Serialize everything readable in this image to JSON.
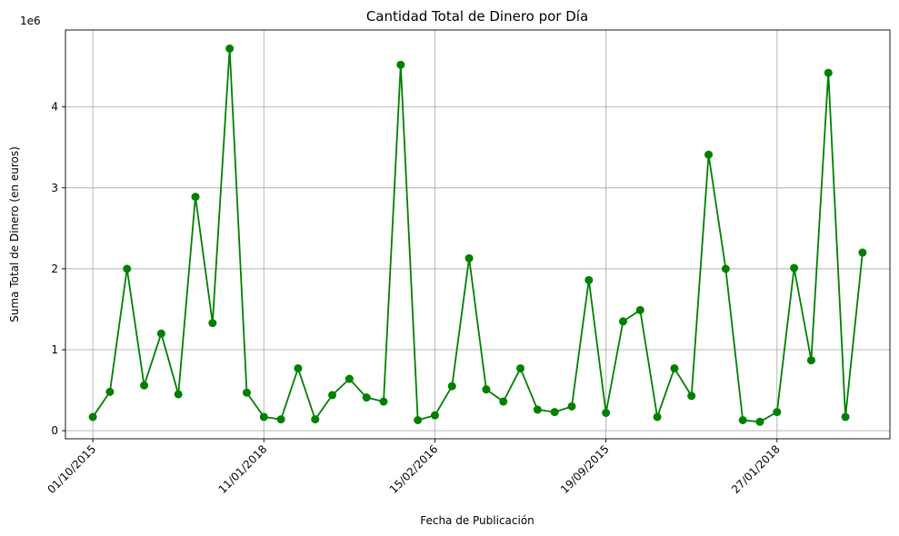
{
  "chart_data": {
    "type": "line",
    "title": "Cantidad Total de Dinero por Día",
    "xlabel": "Fecha de Publicación",
    "ylabel": "Suma Total de Dinero (en euros)",
    "y_offset_text": "1e6",
    "x_tick_labels": [
      "01/10/2015",
      "11/01/2018",
      "15/02/2016",
      "19/09/2015",
      "27/01/2018"
    ],
    "x_tick_positions": [
      0,
      10,
      20,
      30,
      40
    ],
    "y_tick_labels": [
      "0",
      "1",
      "2",
      "3",
      "4"
    ],
    "y_ticks": [
      0,
      1000000,
      2000000,
      3000000,
      4000000
    ],
    "ylim": [
      -100000,
      4950000
    ],
    "xlim": [
      -1.6,
      46.6
    ],
    "grid": true,
    "color": "#008000",
    "marker": "circle",
    "values": [
      170000,
      480000,
      2000000,
      560000,
      1200000,
      450000,
      2890000,
      1330000,
      4720000,
      470000,
      170000,
      140000,
      770000,
      140000,
      440000,
      640000,
      410000,
      360000,
      4520000,
      130000,
      190000,
      550000,
      2130000,
      510000,
      360000,
      770000,
      260000,
      230000,
      300000,
      1860000,
      220000,
      1350000,
      1490000,
      170000,
      770000,
      430000,
      3410000,
      2000000,
      130000,
      110000,
      230000,
      2010000,
      870000,
      4420000,
      170000,
      2200000
    ]
  }
}
